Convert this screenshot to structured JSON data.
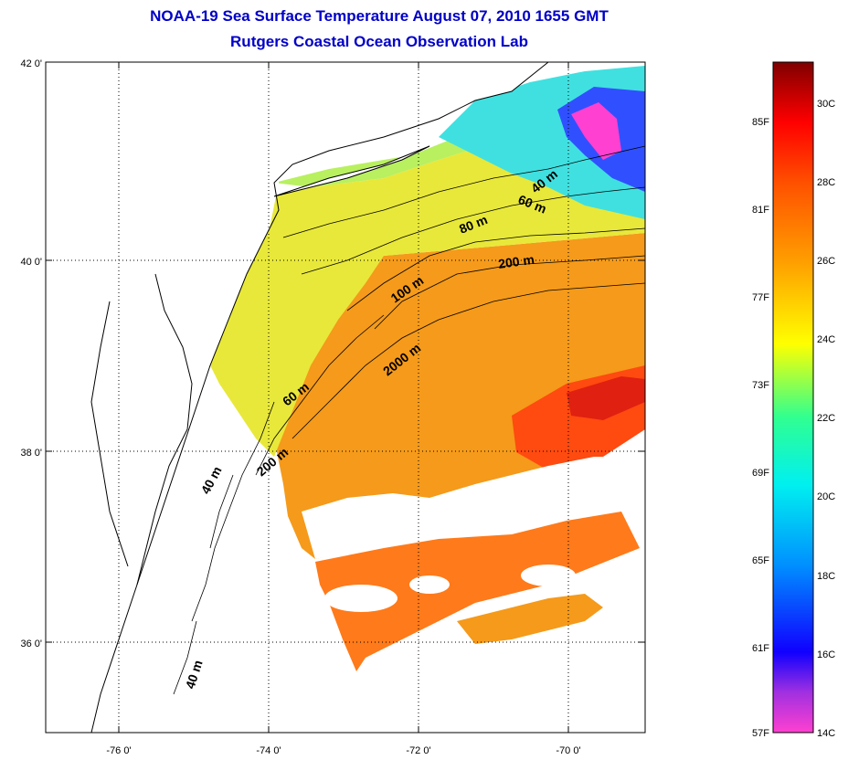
{
  "title": "NOAA-19 Sea Surface Temperature August 07, 2010 1655 GMT",
  "subtitle": "Rutgers Coastal Ocean Observation Lab",
  "map": {
    "lon_range": [
      -77,
      -69
    ],
    "lat_range": [
      35,
      42
    ],
    "lat_labels": [
      {
        "lat": 42,
        "text": "42 0'"
      },
      {
        "lat": 40,
        "text": "40 0'"
      },
      {
        "lat": 38,
        "text": "38 0'"
      },
      {
        "lat": 36,
        "text": "36 0'"
      }
    ],
    "lon_labels": [
      {
        "lon": -76,
        "text": "-76 0'"
      },
      {
        "lon": -74,
        "text": "-74 0'"
      },
      {
        "lon": -72,
        "text": "-72 0'"
      },
      {
        "lon": -70,
        "text": "-70 0'"
      }
    ],
    "grid": true,
    "isobath_labels": [
      "40 m",
      "60 m",
      "80 m",
      "200 m",
      "100 m",
      "2000 m",
      "60 m",
      "200 m",
      "40 m",
      "40 m"
    ]
  },
  "colorbar": {
    "fahrenheit": [
      "85F",
      "81F",
      "77F",
      "73F",
      "69F",
      "65F",
      "61F",
      "57F"
    ],
    "celsius": [
      "30C",
      "28C",
      "26C",
      "24C",
      "22C",
      "20C",
      "18C",
      "16C",
      "14C"
    ],
    "colors": [
      "#ff40d0",
      "#8030e0",
      "#0000ff",
      "#0080ff",
      "#00ffff",
      "#40ff80",
      "#ffff00",
      "#ffa000",
      "#ff4000",
      "#ff0000",
      "#800000"
    ]
  },
  "colors": {
    "title": "#0000c8",
    "warm_water": "#f59a1a",
    "hot_water": "#ff4a10",
    "shelf_water": "#e8e83a",
    "cool_water": "#40e0e0",
    "cold_water": "#3050ff"
  }
}
